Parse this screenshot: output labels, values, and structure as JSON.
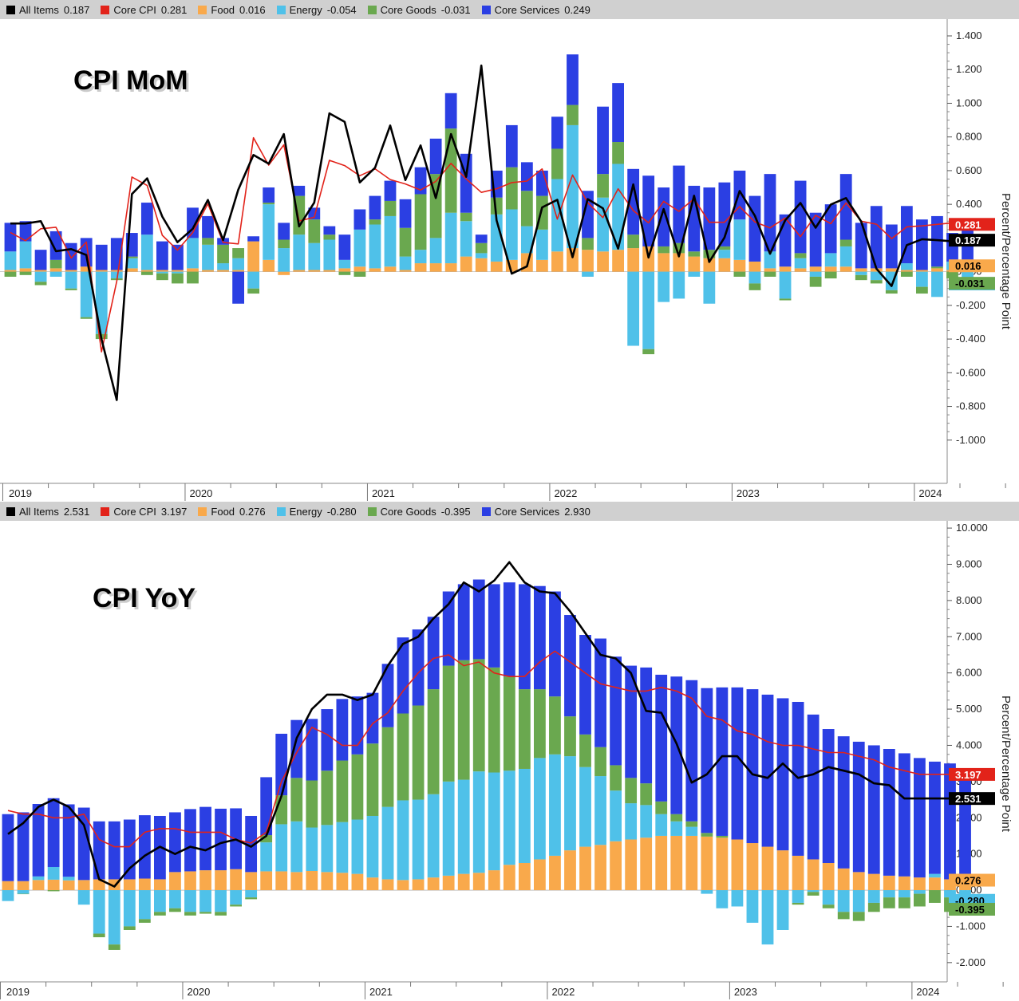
{
  "colors": {
    "all_items": "#000000",
    "core_cpi": "#e2231a",
    "food": "#f9a94b",
    "energy": "#4fc1e9",
    "core_goods": "#6aa84f",
    "core_services": "#2b3fe3"
  },
  "y_axis_label": "Percent/Percentage Point",
  "chart_data": [
    {
      "type": "bar",
      "title": "CPI MoM",
      "ylabel": "Percent/Percentage Point",
      "ylim": [
        -1.2,
        1.4
      ],
      "yticks": [
        "1.400",
        "1.200",
        "1.000",
        "0.800",
        "0.600",
        "0.400",
        "0.200",
        "0.000",
        "-0.200",
        "-0.400",
        "-0.600",
        "-0.800",
        "-1.000"
      ],
      "ytick_values": [
        1.4,
        1.2,
        1.0,
        0.8,
        0.6,
        0.4,
        0.2,
        0.0,
        -0.2,
        -0.4,
        -0.6,
        -0.8,
        -1.0
      ],
      "x_start": "2019-01",
      "x_end": "2024-04",
      "x_year_labels": [
        "2019",
        "2020",
        "2021",
        "2022",
        "2023",
        "2024"
      ],
      "legend": [
        {
          "name": "All Items",
          "value": "0.187",
          "color_key": "all_items"
        },
        {
          "name": "Core CPI",
          "value": "0.281",
          "color_key": "core_cpi"
        },
        {
          "name": "Food",
          "value": "0.016",
          "color_key": "food"
        },
        {
          "name": "Energy",
          "value": "-0.054",
          "color_key": "energy"
        },
        {
          "name": "Core Goods",
          "value": "-0.031",
          "color_key": "core_goods"
        },
        {
          "name": "Core Services",
          "value": "0.249",
          "color_key": "core_services"
        }
      ],
      "right_labels": [
        {
          "text": "0.281",
          "value": 0.281,
          "color_key": "core_cpi"
        },
        {
          "text": "0.187",
          "value": 0.187,
          "color_key": "all_items"
        },
        {
          "text": "0.016",
          "value": 0.016,
          "color_key": "food"
        },
        {
          "text": "-0.054",
          "value": -0.054,
          "color_key": "energy"
        },
        {
          "text": "-0.031",
          "value": -0.031,
          "color_key": "core_goods"
        }
      ],
      "series": {
        "food": [
          0.01,
          0.02,
          0.01,
          0.02,
          0.01,
          0.03,
          0.01,
          0.01,
          0.02,
          0.01,
          0.01,
          0.01,
          0.02,
          0.01,
          0.01,
          0.01,
          0.18,
          0.07,
          -0.02,
          0.01,
          0.01,
          0.01,
          0.02,
          0.03,
          0.02,
          0.03,
          0.01,
          0.05,
          0.05,
          0.05,
          0.09,
          0.08,
          0.06,
          0.07,
          0.11,
          0.07,
          0.12,
          0.14,
          0.13,
          0.12,
          0.13,
          0.14,
          0.15,
          0.11,
          0.11,
          0.09,
          0.08,
          0.08,
          0.07,
          0.06,
          0.02,
          0.03,
          0.02,
          0.03,
          0.03,
          0.03,
          0.02,
          0.02,
          0.02,
          0.01,
          0.01,
          0.02,
          0.01,
          0.02
        ],
        "energy": [
          0.11,
          0.16,
          -0.06,
          -0.03,
          -0.1,
          -0.27,
          -0.37,
          -0.04,
          0.06,
          0.21,
          -0.01,
          -0.01,
          0.18,
          0.15,
          0.04,
          0.07,
          -0.1,
          0.33,
          0.14,
          0.21,
          0.16,
          0.18,
          0.05,
          0.22,
          0.26,
          0.3,
          0.08,
          0.08,
          0.15,
          0.3,
          0.21,
          0.03,
          0.28,
          0.3,
          0.16,
          0.18,
          0.43,
          0.73,
          -0.03,
          0.32,
          0.51,
          -0.44,
          -0.46,
          -0.18,
          -0.16,
          -0.03,
          -0.19,
          0.05,
          0.24,
          -0.07,
          0.1,
          -0.16,
          0.06,
          -0.03,
          0.08,
          0.12,
          -0.02,
          -0.05,
          -0.11,
          0.04,
          -0.09,
          -0.15,
          0.05,
          -0.05
        ],
        "core_goods": [
          -0.03,
          -0.02,
          -0.02,
          0.05,
          -0.01,
          -0.01,
          -0.03,
          -0.01,
          0.01,
          -0.02,
          -0.04,
          -0.06,
          -0.07,
          0.04,
          0.11,
          0.06,
          -0.03,
          0.01,
          0.05,
          0.23,
          0.14,
          0.03,
          -0.02,
          -0.03,
          0.03,
          0.09,
          0.17,
          0.33,
          0.38,
          0.5,
          0.05,
          0.06,
          0.1,
          0.25,
          0.21,
          0.2,
          0.18,
          0.12,
          0.07,
          0.14,
          0.13,
          0.08,
          -0.03,
          0.04,
          0.06,
          0.03,
          0.05,
          0.02,
          -0.03,
          -0.04,
          -0.03,
          -0.01,
          0.03,
          -0.06,
          -0.04,
          0.04,
          -0.03,
          -0.02,
          -0.02,
          -0.03,
          -0.04,
          0.01,
          -0.04,
          -0.03
        ],
        "core_services": [
          0.17,
          0.12,
          0.12,
          0.17,
          0.16,
          0.17,
          0.15,
          0.19,
          0.14,
          0.19,
          0.17,
          0.15,
          0.18,
          0.13,
          0.04,
          -0.19,
          0.03,
          0.09,
          0.1,
          0.06,
          0.07,
          0.05,
          0.15,
          0.12,
          0.14,
          0.12,
          0.17,
          0.16,
          0.21,
          0.21,
          0.35,
          0.05,
          0.16,
          0.25,
          0.17,
          0.15,
          0.19,
          0.3,
          0.28,
          0.4,
          0.35,
          0.39,
          0.42,
          0.35,
          0.46,
          0.39,
          0.37,
          0.38,
          0.29,
          0.39,
          0.46,
          0.31,
          0.43,
          0.32,
          0.29,
          0.39,
          0.27,
          0.37,
          0.26,
          0.34,
          0.3,
          0.3,
          0.17,
          0.25
        ],
        "all_items": [
          0.286,
          0.286,
          0.3,
          0.122,
          0.134,
          0.099,
          -0.4,
          -0.762,
          0.461,
          0.554,
          0.327,
          0.175,
          0.255,
          0.426,
          0.188,
          0.487,
          0.693,
          0.641,
          0.817,
          0.269,
          0.41,
          0.94,
          0.89,
          0.53,
          0.617,
          0.868,
          0.544,
          0.75,
          0.437,
          0.817,
          0.563,
          1.224,
          0.305,
          -0.012,
          0.032,
          0.382,
          0.427,
          0.086,
          0.431,
          0.376,
          0.137,
          0.518,
          0.084,
          0.372,
          0.091,
          0.451,
          0.058,
          0.203,
          0.479,
          0.332,
          0.106,
          0.305,
          0.408,
          0.261,
          0.399,
          0.437,
          0.298,
          0.018,
          -0.085,
          0.158,
          0.193,
          0.187,
          0.18,
          0.187
        ],
        "core_cpi": [
          0.233,
          0.184,
          0.255,
          0.264,
          0.081,
          0.176,
          -0.476,
          -0.057,
          0.562,
          0.512,
          0.216,
          0.128,
          0.232,
          0.403,
          0.174,
          0.165,
          0.795,
          0.633,
          0.753,
          0.301,
          0.323,
          0.661,
          0.63,
          0.57,
          0.611,
          0.547,
          0.521,
          0.485,
          0.536,
          0.643,
          0.551,
          0.471,
          0.492,
          0.529,
          0.538,
          0.61,
          0.312,
          0.574,
          0.41,
          0.321,
          0.492,
          0.363,
          0.29,
          0.418,
          0.358,
          0.433,
          0.293,
          0.293,
          0.387,
          0.295,
          0.26,
          0.319,
          0.208,
          0.335,
          0.285,
          0.408,
          0.3,
          0.282,
          0.196,
          0.266,
          0.272,
          0.281,
          0.29,
          0.281
        ]
      }
    },
    {
      "type": "bar",
      "title": "CPI YoY",
      "ylabel": "Percent/Percentage Point",
      "ylim": [
        -2.4,
        10.2
      ],
      "yticks": [
        "10.000",
        "9.000",
        "8.000",
        "7.000",
        "6.000",
        "5.000",
        "4.000",
        "3.000",
        "2.000",
        "1.000",
        "0.000",
        "-1.000",
        "-2.000"
      ],
      "ytick_values": [
        10,
        9,
        8,
        7,
        6,
        5,
        4,
        3,
        2,
        1,
        0,
        -1,
        -2
      ],
      "x_start": "2019-01",
      "x_end": "2024-04",
      "x_year_labels": [
        "2019",
        "2020",
        "2021",
        "2022",
        "2023",
        "2024"
      ],
      "legend": [
        {
          "name": "All Items",
          "value": "2.531",
          "color_key": "all_items"
        },
        {
          "name": "Core CPI",
          "value": "3.197",
          "color_key": "core_cpi"
        },
        {
          "name": "Food",
          "value": "0.276",
          "color_key": "food"
        },
        {
          "name": "Energy",
          "value": "-0.280",
          "color_key": "energy"
        },
        {
          "name": "Core Goods",
          "value": "-0.395",
          "color_key": "core_goods"
        },
        {
          "name": "Core Services",
          "value": "2.930",
          "color_key": "core_services"
        }
      ],
      "right_labels": [
        {
          "text": "3.197",
          "value": 3.197,
          "color_key": "core_cpi"
        },
        {
          "text": "2.531",
          "value": 2.531,
          "color_key": "all_items"
        },
        {
          "text": "0.276",
          "value": 0.276,
          "color_key": "food"
        },
        {
          "text": "-0.280",
          "value": -0.28,
          "color_key": "energy"
        },
        {
          "text": "-0.395",
          "value": -0.395,
          "color_key": "core_goods"
        }
      ],
      "series": {
        "food": [
          0.25,
          0.25,
          0.28,
          0.29,
          0.27,
          0.28,
          0.3,
          0.3,
          0.3,
          0.32,
          0.3,
          0.5,
          0.52,
          0.55,
          0.55,
          0.58,
          0.5,
          0.52,
          0.52,
          0.5,
          0.53,
          0.5,
          0.48,
          0.45,
          0.35,
          0.3,
          0.28,
          0.3,
          0.35,
          0.4,
          0.45,
          0.48,
          0.55,
          0.7,
          0.75,
          0.85,
          0.95,
          1.1,
          1.2,
          1.25,
          1.35,
          1.4,
          1.45,
          1.5,
          1.5,
          1.5,
          1.48,
          1.45,
          1.4,
          1.3,
          1.2,
          1.1,
          0.95,
          0.85,
          0.75,
          0.6,
          0.5,
          0.45,
          0.4,
          0.38,
          0.35,
          0.35,
          0.3,
          0.276
        ],
        "energy": [
          -0.3,
          -0.1,
          0.1,
          0.35,
          0.1,
          -0.4,
          -1.2,
          -1.5,
          -1.0,
          -0.8,
          -0.6,
          -0.5,
          -0.6,
          -0.6,
          -0.6,
          -0.4,
          -0.2,
          0.8,
          1.3,
          1.4,
          1.2,
          1.3,
          1.4,
          1.5,
          1.7,
          2.0,
          2.2,
          2.2,
          2.3,
          2.6,
          2.6,
          2.8,
          2.7,
          2.6,
          2.6,
          2.8,
          2.8,
          2.6,
          2.2,
          1.9,
          1.4,
          1.0,
          0.9,
          0.6,
          0.4,
          0.25,
          -0.1,
          -0.5,
          -0.45,
          -0.9,
          -1.5,
          -1.1,
          -0.35,
          -0.05,
          -0.4,
          -0.6,
          -0.6,
          -0.35,
          -0.2,
          -0.2,
          -0.1,
          0.1,
          -0.2,
          -0.28
        ],
        "core_goods": [
          0.0,
          -0.01,
          0.0,
          -0.03,
          0.0,
          0.0,
          -0.1,
          -0.15,
          -0.1,
          -0.1,
          -0.1,
          -0.1,
          -0.1,
          -0.05,
          -0.1,
          -0.05,
          -0.05,
          0.2,
          0.8,
          1.2,
          1.3,
          1.5,
          1.7,
          1.8,
          2.0,
          2.2,
          2.4,
          2.6,
          2.9,
          3.2,
          3.3,
          3.1,
          2.9,
          2.6,
          2.2,
          1.9,
          1.6,
          1.1,
          0.9,
          0.8,
          0.7,
          0.7,
          0.6,
          0.35,
          0.2,
          0.15,
          0.1,
          0.05,
          0.0,
          0.0,
          0.0,
          0.0,
          -0.05,
          -0.1,
          -0.1,
          -0.2,
          -0.25,
          -0.25,
          -0.3,
          -0.3,
          -0.35,
          -0.35,
          -0.4,
          -0.395
        ],
        "core_services": [
          1.85,
          1.9,
          2.0,
          1.9,
          2.0,
          2.0,
          1.6,
          1.6,
          1.65,
          1.75,
          1.75,
          1.65,
          1.72,
          1.75,
          1.7,
          1.68,
          1.55,
          1.6,
          1.7,
          1.6,
          1.7,
          1.7,
          1.7,
          1.6,
          1.4,
          1.75,
          2.1,
          2.1,
          2.0,
          2.05,
          2.1,
          2.2,
          2.3,
          2.6,
          2.9,
          2.85,
          2.9,
          2.8,
          2.75,
          3.0,
          3.0,
          3.1,
          3.2,
          3.5,
          3.8,
          3.9,
          4.0,
          4.1,
          4.2,
          4.25,
          4.2,
          4.2,
          4.25,
          4.0,
          3.7,
          3.65,
          3.6,
          3.55,
          3.5,
          3.4,
          3.3,
          3.1,
          3.2,
          2.93
        ],
        "all_items": [
          1.55,
          1.85,
          2.3,
          2.5,
          2.3,
          1.8,
          0.3,
          0.1,
          0.6,
          0.95,
          1.2,
          1.0,
          1.2,
          1.1,
          1.3,
          1.4,
          1.2,
          1.5,
          2.6,
          4.2,
          5.0,
          5.4,
          5.4,
          5.25,
          5.4,
          6.2,
          6.8,
          7.0,
          7.5,
          7.9,
          8.5,
          8.25,
          8.55,
          9.06,
          8.5,
          8.25,
          8.2,
          7.7,
          7.1,
          6.5,
          6.4,
          6.0,
          4.95,
          4.9,
          4.05,
          2.97,
          3.2,
          3.7,
          3.7,
          3.2,
          3.1,
          3.5,
          3.1,
          3.2,
          3.4,
          3.3,
          3.2,
          2.95,
          2.9,
          2.531,
          2.531,
          2.531,
          2.531,
          2.531
        ],
        "core_cpi": [
          2.2,
          2.1,
          2.1,
          2.0,
          2.0,
          2.1,
          1.4,
          1.2,
          1.2,
          1.6,
          1.7,
          1.7,
          1.6,
          1.6,
          1.6,
          1.4,
          1.3,
          1.6,
          3.0,
          3.8,
          4.5,
          4.3,
          4.0,
          4.0,
          4.6,
          4.9,
          5.5,
          6.0,
          6.4,
          6.5,
          6.2,
          6.3,
          6.0,
          5.9,
          5.9,
          6.3,
          6.6,
          6.3,
          6.0,
          5.7,
          5.6,
          5.5,
          5.5,
          5.6,
          5.5,
          5.3,
          4.8,
          4.7,
          4.4,
          4.3,
          4.1,
          4.0,
          4.0,
          3.9,
          3.8,
          3.8,
          3.7,
          3.6,
          3.4,
          3.3,
          3.2,
          3.2,
          3.2,
          3.197
        ]
      }
    }
  ]
}
